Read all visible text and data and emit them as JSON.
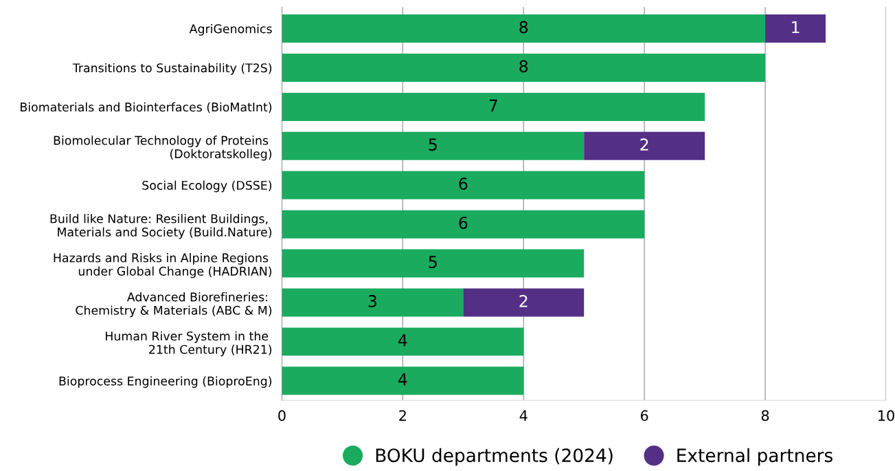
{
  "chart_data": {
    "type": "bar",
    "orientation": "horizontal",
    "stacked": true,
    "categories": [
      "AgriGenomics",
      "Transitions to Sustainability (T2S)",
      "Biomaterials and Biointerfaces (BioMatInt)",
      "Biomolecular Technology of Proteins \n(Doktoratskolleg)",
      "Social Ecology (DSSE)",
      "Build like Nature: Resilient Buildings, \nMaterials and Society (Build.Nature)",
      "Hazards and Risks in Alpine Regions \nunder Global Change (HADRIAN)",
      "Advanced Biorefineries: \nChemistry & Materials (ABC & M)",
      "Human River System in the \n21th Century (HR21)",
      "Bioprocess Engineering (BioproEng)"
    ],
    "series": [
      {
        "name": "BOKU departments (2024)",
        "color": "#1aab5f",
        "values": [
          8,
          8,
          7,
          5,
          6,
          6,
          5,
          3,
          4,
          4
        ]
      },
      {
        "name": "External partners",
        "color": "#542f86",
        "values": [
          1,
          null,
          null,
          2,
          null,
          null,
          null,
          2,
          null,
          null
        ]
      }
    ],
    "xlim": [
      0,
      10
    ],
    "xticks": [
      0,
      2,
      4,
      6,
      8,
      10
    ],
    "grid": "x",
    "legend": "bottom",
    "marker": "circle",
    "data_labels": true
  }
}
